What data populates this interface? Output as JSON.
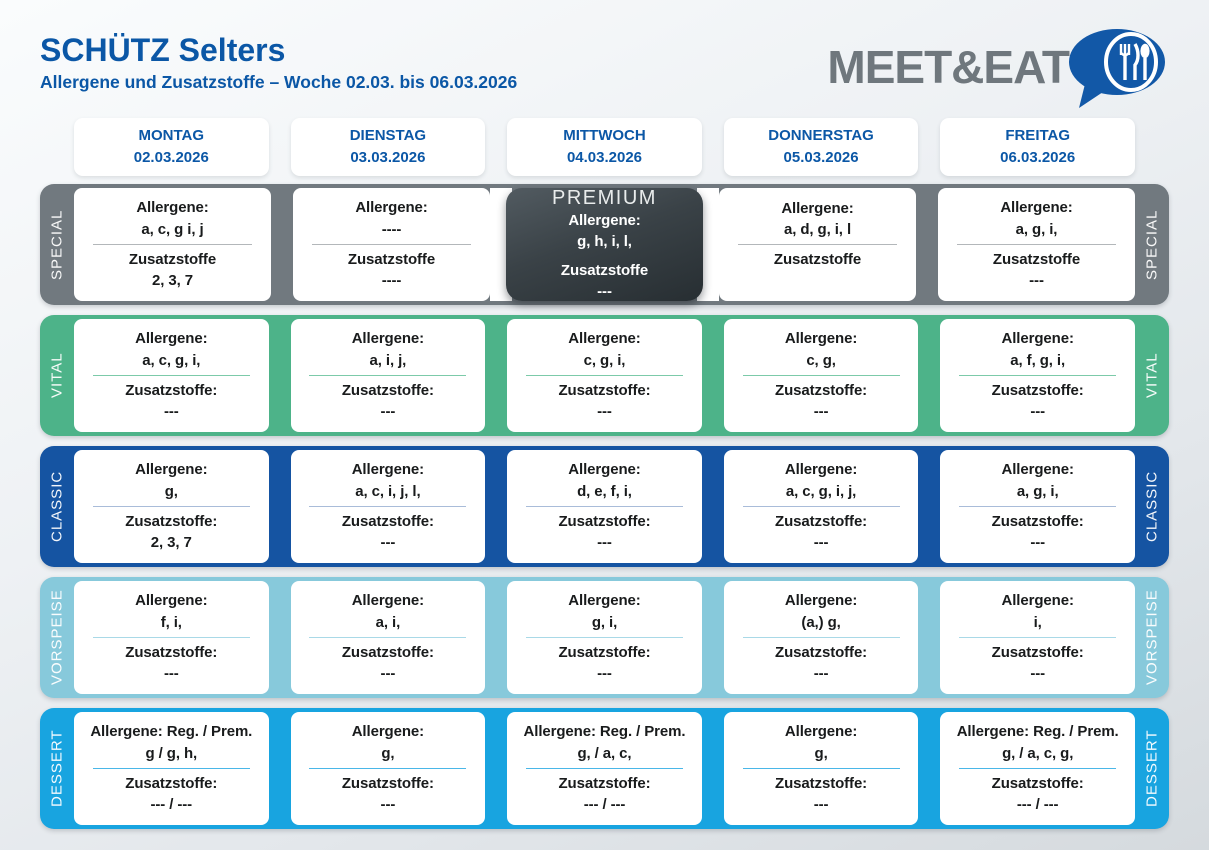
{
  "header": {
    "title": "SCHÜTZ Selters",
    "subtitle": "Allergene und Zusatzstoffe – Woche 02.03. bis 06.03.2026",
    "logo_text": "MEET&EAT"
  },
  "colors": {
    "brand_blue": "#0b57a6",
    "logo_gray": "#6f777d",
    "logo_bubble_blue": "#1258a7",
    "page_background_top": "#fafcfd",
    "page_background_bottom": "#d5dade",
    "premium_dark_top": "#525b61",
    "premium_dark_bottom": "#272e32"
  },
  "days": [
    {
      "name": "MONTAG",
      "date": "02.03.2026"
    },
    {
      "name": "DIENSTAG",
      "date": "03.03.2026"
    },
    {
      "name": "MITTWOCH",
      "date": "04.03.2026"
    },
    {
      "name": "DONNERSTAG",
      "date": "05.03.2026"
    },
    {
      "name": "FREITAG",
      "date": "06.03.2026"
    }
  ],
  "rows": [
    {
      "label": "SPECIAL",
      "band_color": "#71797f",
      "divider_color": "#b3b7ba",
      "premium_col": 2,
      "cells": [
        {
          "allergene_label": "Allergene:",
          "allergene": "a, c, g i, j",
          "zusatz_label": "Zusatzstoffe",
          "zusatz": "2, 3, 7"
        },
        {
          "allergene_label": "Allergene:",
          "allergene": "----",
          "zusatz_label": "Zusatzstoffe",
          "zusatz": "----"
        },
        {
          "premium": true,
          "premium_label": "PREMIUM",
          "allergene_label": "Allergene:",
          "allergene": "g, h, i, l,",
          "zusatz_label": "Zusatzstoffe",
          "zusatz": "---"
        },
        {
          "allergene_label": "Allergene:",
          "allergene": "a, d, g, i, l",
          "zusatz_label": "Zusatzstoffe",
          "zusatz": ""
        },
        {
          "allergene_label": "Allergene:",
          "allergene": "a, g, i,",
          "zusatz_label": "Zusatzstoffe",
          "zusatz": "---"
        }
      ]
    },
    {
      "label": "VITAL",
      "band_color": "#4db389",
      "divider_color": "#7ccaa9",
      "cells": [
        {
          "allergene_label": "Allergene:",
          "allergene": "a, c, g, i,",
          "zusatz_label": "Zusatzstoffe:",
          "zusatz": "---"
        },
        {
          "allergene_label": "Allergene:",
          "allergene": "a, i, j,",
          "zusatz_label": "Zusatzstoffe:",
          "zusatz": "---"
        },
        {
          "allergene_label": "Allergene:",
          "allergene": "c, g, i,",
          "zusatz_label": "Zusatzstoffe:",
          "zusatz": "---"
        },
        {
          "allergene_label": "Allergene:",
          "allergene": "c, g,",
          "zusatz_label": "Zusatzstoffe:",
          "zusatz": "---"
        },
        {
          "allergene_label": "Allergene:",
          "allergene": "a, f, g, i,",
          "zusatz_label": "Zusatzstoffe:",
          "zusatz": "---"
        }
      ]
    },
    {
      "label": "CLASSIC",
      "band_color": "#1554a2",
      "divider_color": "#a9bcd9",
      "cells": [
        {
          "allergene_label": "Allergene:",
          "allergene": "g,",
          "zusatz_label": "Zusatzstoffe:",
          "zusatz": "2, 3, 7"
        },
        {
          "allergene_label": "Allergene:",
          "allergene": "a, c, i, j, l,",
          "zusatz_label": "Zusatzstoffe:",
          "zusatz": "---"
        },
        {
          "allergene_label": "Allergene:",
          "allergene": "d, e, f, i,",
          "zusatz_label": "Zusatzstoffe:",
          "zusatz": "---"
        },
        {
          "allergene_label": "Allergene:",
          "allergene": "a, c, g, i, j,",
          "zusatz_label": "Zusatzstoffe:",
          "zusatz": "---"
        },
        {
          "allergene_label": "Allergene:",
          "allergene": "a, g, i,",
          "zusatz_label": "Zusatzstoffe:",
          "zusatz": "---"
        }
      ]
    },
    {
      "label": "VORSPEISE",
      "band_color": "#87c9db",
      "divider_color": "#a9d9e7",
      "cells": [
        {
          "allergene_label": "Allergene:",
          "allergene": "f, i,",
          "zusatz_label": "Zusatzstoffe:",
          "zusatz": "---"
        },
        {
          "allergene_label": "Allergene:",
          "allergene": "a, i,",
          "zusatz_label": "Zusatzstoffe:",
          "zusatz": "---"
        },
        {
          "allergene_label": "Allergene:",
          "allergene": "g, i,",
          "zusatz_label": "Zusatzstoffe:",
          "zusatz": "---"
        },
        {
          "allergene_label": "Allergene:",
          "allergene": "(a,) g,",
          "zusatz_label": "Zusatzstoffe:",
          "zusatz": "---"
        },
        {
          "allergene_label": "Allergene:",
          "allergene": "i,",
          "zusatz_label": "Zusatzstoffe:",
          "zusatz": "---"
        }
      ]
    },
    {
      "label": "DESSERT",
      "band_color": "#18a4e0",
      "divider_color": "#4ab7e8",
      "cells": [
        {
          "allergene_label": "Allergene: Reg. / Prem.",
          "allergene": "g / g, h,",
          "zusatz_label": "Zusatzstoffe:",
          "zusatz": "--- / ---"
        },
        {
          "allergene_label": "Allergene:",
          "allergene": "g,",
          "zusatz_label": "Zusatzstoffe:",
          "zusatz": "---"
        },
        {
          "allergene_label": "Allergene: Reg. / Prem.",
          "allergene": "g, / a, c,",
          "zusatz_label": "Zusatzstoffe:",
          "zusatz": "--- / ---"
        },
        {
          "allergene_label": "Allergene:",
          "allergene": "g,",
          "zusatz_label": "Zusatzstoffe:",
          "zusatz": "---"
        },
        {
          "allergene_label": "Allergene: Reg. / Prem.",
          "allergene": "g, / a, c, g,",
          "zusatz_label": "Zusatzstoffe:",
          "zusatz": "--- / ---"
        }
      ]
    }
  ]
}
